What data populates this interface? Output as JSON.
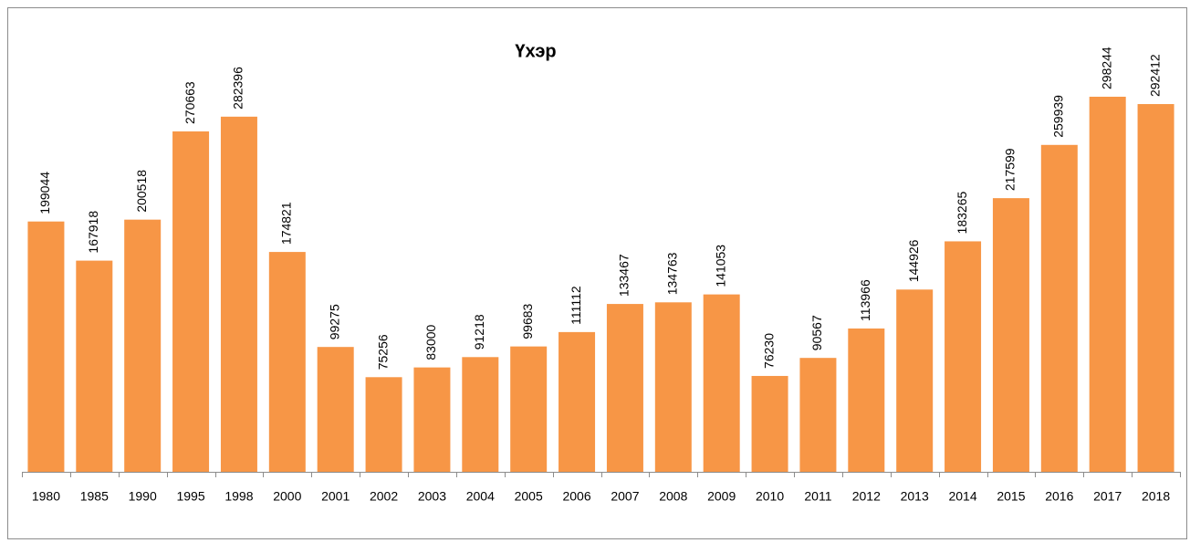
{
  "chart_data": {
    "type": "bar",
    "title": "Үхэр",
    "categories": [
      "1980",
      "1985",
      "1990",
      "1995",
      "1998",
      "2000",
      "2001",
      "2002",
      "2003",
      "2004",
      "2005",
      "2006",
      "2007",
      "2008",
      "2009",
      "2010",
      "2011",
      "2012",
      "2013",
      "2014",
      "2015",
      "2016",
      "2017",
      "2018"
    ],
    "values": [
      199044,
      167918,
      200518,
      270663,
      282396,
      174821,
      99275,
      75256,
      83000,
      91218,
      99683,
      111112,
      133467,
      134763,
      141053,
      76230,
      90567,
      113966,
      144926,
      183265,
      217599,
      259939,
      298244,
      292412
    ],
    "color": "#f79646"
  }
}
